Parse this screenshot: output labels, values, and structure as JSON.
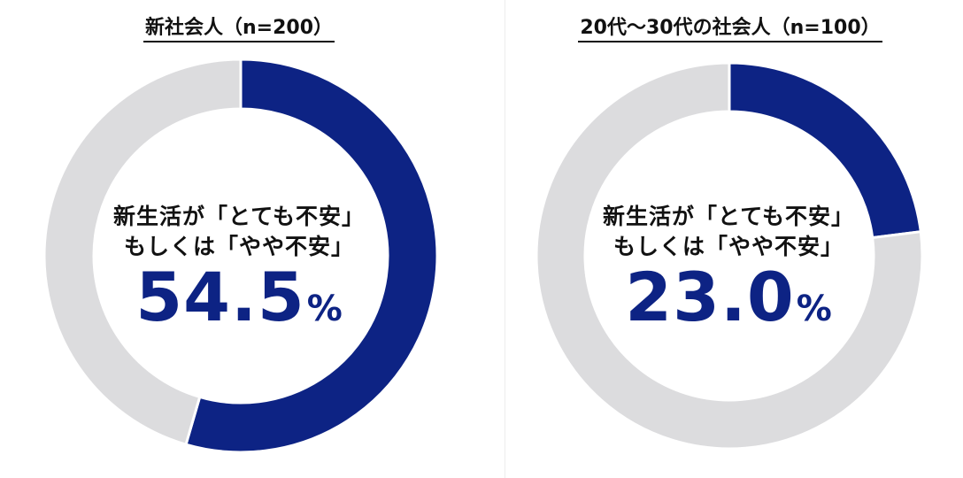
{
  "colors": {
    "accent": "#0d2384",
    "track": "#dcdcde",
    "text": "#111111"
  },
  "chart_data": [
    {
      "type": "pie",
      "title": "新社会人（n=200）",
      "center_label_line1": "新生活が「とても不安」",
      "center_label_line2": "もしくは「やや不安」",
      "value_number": "54.5",
      "value_unit": "%",
      "slices": [
        {
          "label": "新生活が「とても不安」もしくは「やや不安」",
          "value": 54.5,
          "color": "#0d2384"
        },
        {
          "label": "",
          "value": 45.5,
          "color": "#dcdcde"
        }
      ]
    },
    {
      "type": "pie",
      "title": "20代～30代の社会人（n=100）",
      "center_label_line1": "新生活が「とても不安」",
      "center_label_line2": "もしくは「やや不安」",
      "value_number": "23.0",
      "value_unit": "%",
      "slices": [
        {
          "label": "新生活が「とても不安」もしくは「やや不安」",
          "value": 23.0,
          "color": "#0d2384"
        },
        {
          "label": "",
          "value": 77.0,
          "color": "#dcdcde"
        }
      ]
    }
  ]
}
